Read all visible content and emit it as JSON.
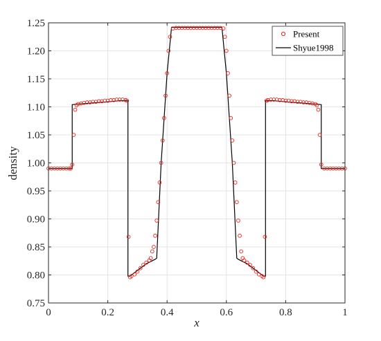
{
  "chart_data": {
    "type": "line",
    "xlabel": "x",
    "ylabel": "density",
    "xlim": [
      0,
      1
    ],
    "ylim": [
      0.75,
      1.25
    ],
    "xticks": [
      0,
      0.2,
      0.4,
      0.6,
      0.8,
      1
    ],
    "xtick_labels": [
      "0",
      "0.2",
      "0.4",
      "0.6",
      "0.8",
      "1"
    ],
    "yticks": [
      0.75,
      0.8,
      0.85,
      0.9,
      0.95,
      1.0,
      1.05,
      1.1,
      1.15,
      1.2,
      1.25
    ],
    "ytick_labels": [
      "0.75",
      "0.80",
      "0.85",
      "0.90",
      "0.95",
      "1.00",
      "1.05",
      "1.10",
      "1.15",
      "1.20",
      "1.25"
    ],
    "grid": true,
    "legend_position": "top-right",
    "colors": {
      "present": "#e8221a",
      "reference": "#000000",
      "grid": "#dcdcdc",
      "axis": "#262626"
    },
    "series": [
      {
        "name": "Present",
        "style": "markers",
        "marker": "circle",
        "x": [
          0.0,
          0.01,
          0.02,
          0.03,
          0.04,
          0.05,
          0.06,
          0.07,
          0.075,
          0.08,
          0.085,
          0.09,
          0.095,
          0.1,
          0.11,
          0.12,
          0.13,
          0.14,
          0.15,
          0.16,
          0.17,
          0.18,
          0.19,
          0.2,
          0.21,
          0.22,
          0.23,
          0.24,
          0.25,
          0.26,
          0.265,
          0.27,
          0.275,
          0.28,
          0.29,
          0.3,
          0.31,
          0.32,
          0.33,
          0.34,
          0.345,
          0.35,
          0.355,
          0.36,
          0.365,
          0.37,
          0.375,
          0.38,
          0.385,
          0.39,
          0.395,
          0.4,
          0.405,
          0.41,
          0.42,
          0.43,
          0.44,
          0.45,
          0.46,
          0.47,
          0.48,
          0.49,
          0.5,
          0.51,
          0.52,
          0.53,
          0.54,
          0.55,
          0.56,
          0.57,
          0.58,
          0.59,
          0.595,
          0.6,
          0.605,
          0.61,
          0.615,
          0.62,
          0.625,
          0.63,
          0.635,
          0.64,
          0.645,
          0.65,
          0.655,
          0.66,
          0.67,
          0.68,
          0.69,
          0.7,
          0.71,
          0.72,
          0.725,
          0.73,
          0.735,
          0.74,
          0.75,
          0.76,
          0.77,
          0.78,
          0.79,
          0.8,
          0.81,
          0.82,
          0.83,
          0.84,
          0.85,
          0.86,
          0.87,
          0.88,
          0.89,
          0.9,
          0.905,
          0.91,
          0.915,
          0.92,
          0.93,
          0.94,
          0.95,
          0.96,
          0.97,
          0.98,
          0.99,
          1.0
        ],
        "y": [
          0.99,
          0.99,
          0.99,
          0.99,
          0.99,
          0.99,
          0.99,
          0.99,
          0.99,
          0.997,
          1.05,
          1.095,
          1.103,
          1.105,
          1.106,
          1.107,
          1.108,
          1.108,
          1.109,
          1.109,
          1.11,
          1.11,
          1.111,
          1.111,
          1.112,
          1.112,
          1.113,
          1.113,
          1.113,
          1.112,
          1.111,
          0.868,
          0.796,
          0.798,
          0.801,
          0.806,
          0.812,
          0.818,
          0.822,
          0.826,
          0.83,
          0.842,
          0.85,
          0.87,
          0.897,
          0.93,
          0.965,
          1.0,
          1.04,
          1.08,
          1.12,
          1.16,
          1.2,
          1.225,
          1.24,
          1.241,
          1.241,
          1.241,
          1.241,
          1.241,
          1.241,
          1.241,
          1.241,
          1.241,
          1.241,
          1.241,
          1.241,
          1.241,
          1.241,
          1.241,
          1.241,
          1.24,
          1.225,
          1.2,
          1.16,
          1.12,
          1.08,
          1.04,
          1.0,
          0.965,
          0.93,
          0.897,
          0.87,
          0.842,
          0.83,
          0.826,
          0.822,
          0.818,
          0.812,
          0.806,
          0.801,
          0.798,
          0.796,
          0.868,
          1.111,
          1.112,
          1.113,
          1.113,
          1.113,
          1.112,
          1.112,
          1.111,
          1.111,
          1.11,
          1.11,
          1.109,
          1.109,
          1.108,
          1.108,
          1.107,
          1.106,
          1.105,
          1.103,
          1.095,
          1.05,
          0.997,
          0.99,
          0.99,
          0.99,
          0.99,
          0.99,
          0.99,
          0.99,
          0.99
        ]
      },
      {
        "name": "Shyue1998",
        "style": "line",
        "x": [
          0.0,
          0.08,
          0.08,
          0.1,
          0.15,
          0.2,
          0.24,
          0.268,
          0.268,
          0.275,
          0.3,
          0.33,
          0.36,
          0.365,
          0.38,
          0.4,
          0.415,
          0.585,
          0.6,
          0.62,
          0.635,
          0.64,
          0.67,
          0.7,
          0.725,
          0.732,
          0.732,
          0.76,
          0.8,
          0.85,
          0.9,
          0.92,
          0.92,
          1.0
        ],
        "y": [
          0.99,
          0.99,
          1.104,
          1.105,
          1.107,
          1.109,
          1.111,
          1.111,
          0.798,
          0.798,
          0.808,
          0.82,
          0.828,
          0.83,
          1.0,
          1.16,
          1.242,
          1.242,
          1.16,
          1.0,
          0.83,
          0.828,
          0.82,
          0.808,
          0.798,
          0.798,
          1.111,
          1.111,
          1.109,
          1.107,
          1.105,
          1.104,
          0.99,
          0.99
        ]
      }
    ]
  }
}
